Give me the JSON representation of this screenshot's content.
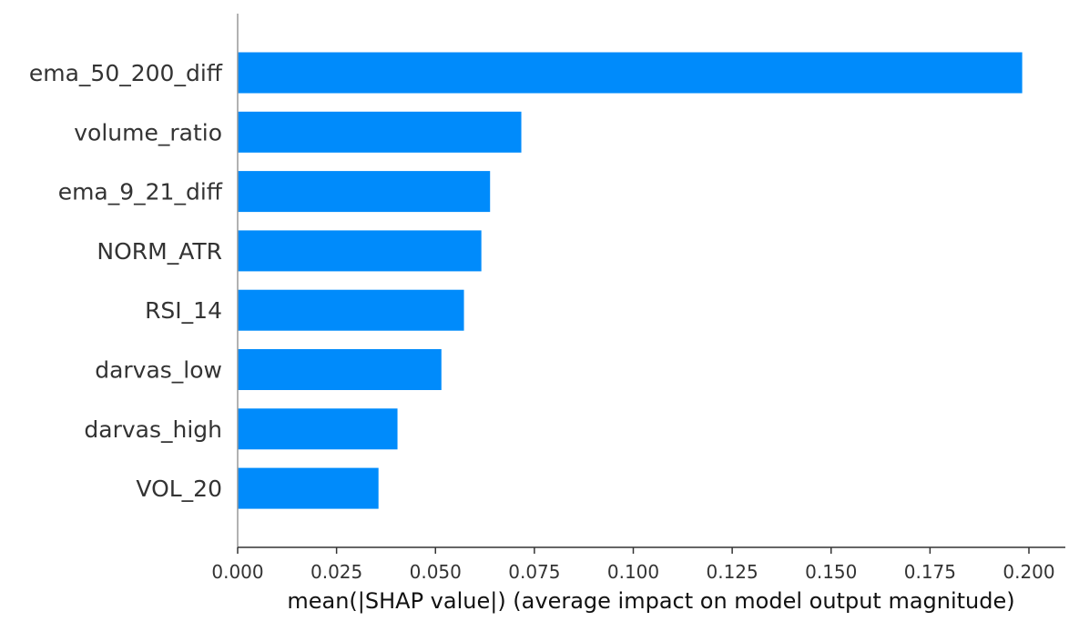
{
  "chart_data": {
    "type": "bar",
    "orientation": "horizontal",
    "categories": [
      "ema_50_200_diff",
      "volume_ratio",
      "ema_9_21_diff",
      "NORM_ATR",
      "RSI_14",
      "darvas_low",
      "darvas_high",
      "VOL_20"
    ],
    "values": [
      0.1983,
      0.0717,
      0.0638,
      0.0616,
      0.0572,
      0.0515,
      0.0404,
      0.0356
    ],
    "title": "",
    "xlabel": "mean(|SHAP value|) (average impact on model output magnitude)",
    "ylabel": "",
    "xlim": [
      0,
      0.2
    ],
    "xticks": [
      "0.000",
      "0.025",
      "0.050",
      "0.075",
      "0.100",
      "0.125",
      "0.150",
      "0.175",
      "0.200"
    ],
    "bar_color": "#008bfb",
    "grid": false,
    "legend": "none"
  }
}
